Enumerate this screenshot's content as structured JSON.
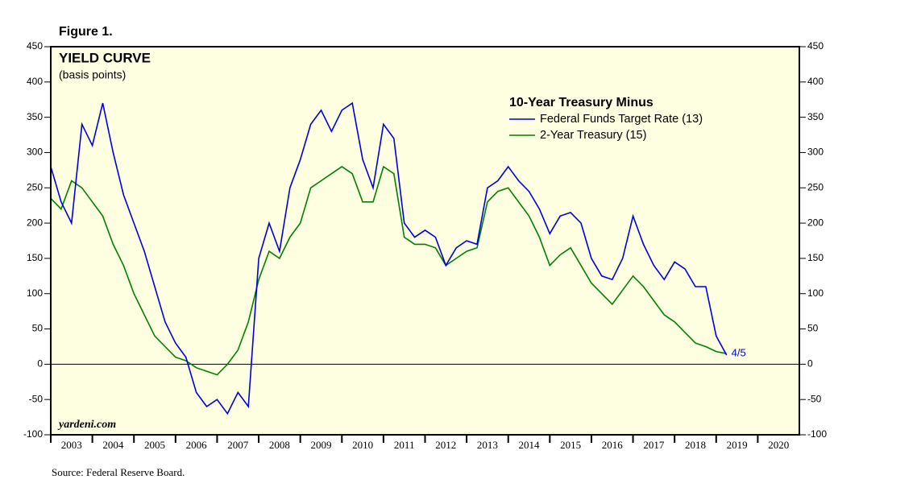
{
  "figure_label": "Figure 1.",
  "source": "Source: Federal Reserve Board.",
  "chart_data": {
    "type": "line",
    "title": "YIELD CURVE",
    "subtitle": "(basis points)",
    "legend_title": "10-Year Treasury Minus",
    "watermark": "yardeni.com",
    "annotation": "4/5",
    "background": "#fefee0",
    "grid": false,
    "legend": "upper right",
    "xlim": [
      2003,
      2021
    ],
    "xticks": [
      {
        "value": 2003,
        "label": "2003"
      },
      {
        "value": 2004,
        "label": "2004"
      },
      {
        "value": 2005,
        "label": "2005"
      },
      {
        "value": 2006,
        "label": "2006"
      },
      {
        "value": 2007,
        "label": "2007"
      },
      {
        "value": 2008,
        "label": "2008"
      },
      {
        "value": 2009,
        "label": "2009"
      },
      {
        "value": 2010,
        "label": "2010"
      },
      {
        "value": 2011,
        "label": "2011"
      },
      {
        "value": 2012,
        "label": "2012"
      },
      {
        "value": 2013,
        "label": "2013"
      },
      {
        "value": 2014,
        "label": "2014"
      },
      {
        "value": 2015,
        "label": "2015"
      },
      {
        "value": 2016,
        "label": "2016"
      },
      {
        "value": 2017,
        "label": "2017"
      },
      {
        "value": 2018,
        "label": "2018"
      },
      {
        "value": 2019,
        "label": "2019"
      },
      {
        "value": 2020,
        "label": "2020"
      }
    ],
    "ylim": [
      -100,
      450
    ],
    "yticks": [
      -100,
      -50,
      0,
      50,
      100,
      150,
      200,
      250,
      300,
      350,
      400,
      450
    ],
    "x": [
      2003.0,
      2003.25,
      2003.5,
      2003.75,
      2004.0,
      2004.25,
      2004.5,
      2004.75,
      2005.0,
      2005.25,
      2005.5,
      2005.75,
      2006.0,
      2006.25,
      2006.5,
      2006.75,
      2007.0,
      2007.25,
      2007.5,
      2007.75,
      2008.0,
      2008.25,
      2008.5,
      2008.75,
      2009.0,
      2009.25,
      2009.5,
      2009.75,
      2010.0,
      2010.25,
      2010.5,
      2010.75,
      2011.0,
      2011.25,
      2011.5,
      2011.75,
      2012.0,
      2012.25,
      2012.5,
      2012.75,
      2013.0,
      2013.25,
      2013.5,
      2013.75,
      2014.0,
      2014.25,
      2014.5,
      2014.75,
      2015.0,
      2015.25,
      2015.5,
      2015.75,
      2016.0,
      2016.25,
      2016.5,
      2016.75,
      2017.0,
      2017.25,
      2017.5,
      2017.75,
      2018.0,
      2018.25,
      2018.5,
      2018.75,
      2019.0,
      2019.25
    ],
    "series": [
      {
        "name": "Federal Funds Target Rate (13)",
        "color": "#0000dd",
        "values": [
          280,
          230,
          200,
          340,
          310,
          370,
          300,
          240,
          200,
          160,
          110,
          60,
          30,
          10,
          -40,
          -60,
          -50,
          -70,
          -40,
          -60,
          150,
          200,
          160,
          250,
          290,
          340,
          360,
          330,
          360,
          370,
          290,
          250,
          340,
          320,
          200,
          180,
          190,
          180,
          140,
          165,
          175,
          170,
          250,
          260,
          280,
          260,
          245,
          220,
          185,
          210,
          215,
          200,
          150,
          125,
          120,
          150,
          210,
          170,
          140,
          120,
          145,
          135,
          110,
          110,
          40,
          13
        ]
      },
      {
        "name": "2-Year Treasury (15)",
        "color": "#008000",
        "values": [
          235,
          220,
          260,
          250,
          230,
          210,
          170,
          140,
          100,
          70,
          40,
          25,
          10,
          5,
          -5,
          -10,
          -15,
          0,
          20,
          60,
          120,
          160,
          150,
          180,
          200,
          250,
          260,
          270,
          280,
          270,
          230,
          230,
          280,
          270,
          180,
          170,
          170,
          165,
          140,
          150,
          160,
          165,
          230,
          245,
          250,
          230,
          210,
          180,
          140,
          155,
          165,
          140,
          115,
          100,
          85,
          105,
          125,
          110,
          90,
          70,
          60,
          45,
          30,
          25,
          18,
          15
        ]
      }
    ]
  }
}
